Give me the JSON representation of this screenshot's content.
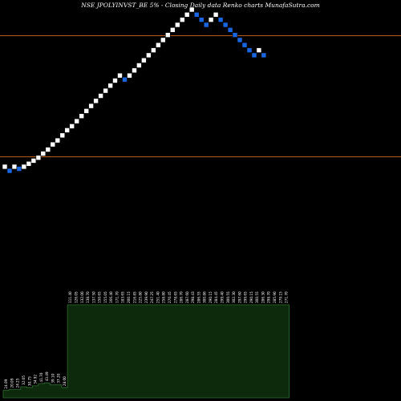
{
  "chart_data": {
    "type": "renko",
    "title": "NSE JPOLYINVST_BE 5% - Closing Daily data Renko charts MunafaSutra.com",
    "colors": {
      "background": "#000000",
      "up_brick": "#ffffff",
      "down_brick": "#1a66e0",
      "reference_line": "#b85c1a",
      "volume_fill": "#0d2a0d",
      "volume_stroke": "#2e6b2e"
    },
    "reference_lines": [
      1130,
      530
    ],
    "grid": false,
    "bricks": [
      {
        "value": 480,
        "dir": "up"
      },
      {
        "value": 460,
        "dir": "down"
      },
      {
        "value": 480,
        "dir": "up"
      },
      {
        "value": 470,
        "dir": "down"
      },
      {
        "value": 480,
        "dir": "up"
      },
      {
        "value": 495,
        "dir": "up"
      },
      {
        "value": 510,
        "dir": "up"
      },
      {
        "value": 525,
        "dir": "up"
      },
      {
        "value": 545,
        "dir": "up"
      },
      {
        "value": 565,
        "dir": "up"
      },
      {
        "value": 590,
        "dir": "up"
      },
      {
        "value": 610,
        "dir": "up"
      },
      {
        "value": 635,
        "dir": "up"
      },
      {
        "value": 660,
        "dir": "up"
      },
      {
        "value": 680,
        "dir": "up"
      },
      {
        "value": 705,
        "dir": "up"
      },
      {
        "value": 730,
        "dir": "up"
      },
      {
        "value": 755,
        "dir": "up"
      },
      {
        "value": 780,
        "dir": "up"
      },
      {
        "value": 805,
        "dir": "up"
      },
      {
        "value": 830,
        "dir": "up"
      },
      {
        "value": 855,
        "dir": "up"
      },
      {
        "value": 880,
        "dir": "up"
      },
      {
        "value": 905,
        "dir": "up"
      },
      {
        "value": 930,
        "dir": "up"
      },
      {
        "value": 910,
        "dir": "down"
      },
      {
        "value": 930,
        "dir": "up"
      },
      {
        "value": 955,
        "dir": "up"
      },
      {
        "value": 980,
        "dir": "up"
      },
      {
        "value": 1005,
        "dir": "up"
      },
      {
        "value": 1030,
        "dir": "up"
      },
      {
        "value": 1055,
        "dir": "up"
      },
      {
        "value": 1080,
        "dir": "up"
      },
      {
        "value": 1105,
        "dir": "up"
      },
      {
        "value": 1130,
        "dir": "up"
      },
      {
        "value": 1155,
        "dir": "up"
      },
      {
        "value": 1180,
        "dir": "up"
      },
      {
        "value": 1205,
        "dir": "up"
      },
      {
        "value": 1230,
        "dir": "up"
      },
      {
        "value": 1255,
        "dir": "up"
      },
      {
        "value": 1230,
        "dir": "down"
      },
      {
        "value": 1205,
        "dir": "down"
      },
      {
        "value": 1180,
        "dir": "down"
      },
      {
        "value": 1205,
        "dir": "up"
      },
      {
        "value": 1230,
        "dir": "up"
      },
      {
        "value": 1205,
        "dir": "down"
      },
      {
        "value": 1180,
        "dir": "down"
      },
      {
        "value": 1155,
        "dir": "down"
      },
      {
        "value": 1130,
        "dir": "down"
      },
      {
        "value": 1105,
        "dir": "down"
      },
      {
        "value": 1080,
        "dir": "down"
      },
      {
        "value": 1055,
        "dir": "down"
      },
      {
        "value": 1030,
        "dir": "down"
      },
      {
        "value": 1055,
        "dir": "up"
      },
      {
        "value": 1030,
        "dir": "down"
      }
    ],
    "volume_labels": [
      "24.09",
      "20.09",
      "24.25",
      "32.05",
      "30.75",
      "34.92",
      "41.70",
      "43.49",
      "39.10",
      "37.20",
      "28.00",
      "111.40",
      "126.05",
      "132.00",
      "138.70",
      "137.50",
      "150.65",
      "155.05",
      "166.40",
      "171.70",
      "183.65",
      "200.15",
      "216.85",
      "225.80",
      "239.90",
      "247.25",
      "251.40",
      "258.80",
      "270.45",
      "278.65",
      "286.70",
      "287.60",
      "298.43",
      "286.55",
      "300.86",
      "290.15",
      "284.45",
      "299.40",
      "300.55",
      "302.30",
      "297.60",
      "299.65",
      "290.15",
      "300.55",
      "286.30",
      "298.70",
      "285.90",
      "279.15",
      "271.70"
    ],
    "volume_values": [
      8,
      9,
      9,
      12,
      11,
      13,
      15,
      16,
      14,
      14,
      11,
      100,
      100,
      100,
      100,
      100,
      100,
      100,
      100,
      100,
      100,
      100,
      100,
      100,
      100,
      100,
      100,
      100,
      100,
      100,
      100,
      100,
      100,
      100,
      100,
      100,
      100,
      100,
      100,
      100,
      100,
      100,
      100,
      100,
      100,
      100,
      100,
      100,
      100
    ]
  }
}
